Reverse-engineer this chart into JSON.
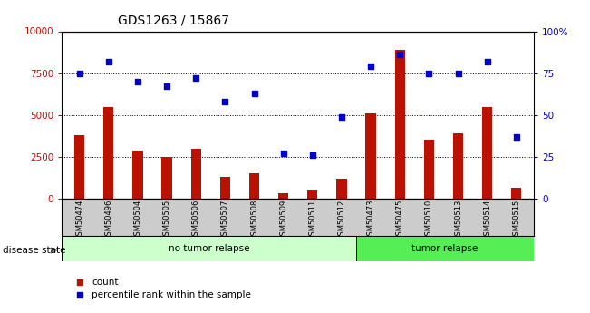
{
  "title": "GDS1263 / 15867",
  "samples": [
    "GSM50474",
    "GSM50496",
    "GSM50504",
    "GSM50505",
    "GSM50506",
    "GSM50507",
    "GSM50508",
    "GSM50509",
    "GSM50511",
    "GSM50512",
    "GSM50473",
    "GSM50475",
    "GSM50510",
    "GSM50513",
    "GSM50514",
    "GSM50515"
  ],
  "counts": [
    3800,
    5500,
    2900,
    2500,
    3000,
    1300,
    1500,
    350,
    550,
    1200,
    5100,
    8900,
    3500,
    3900,
    5500,
    650
  ],
  "percentiles": [
    75,
    82,
    70,
    67,
    72,
    58,
    63,
    27,
    26,
    49,
    79,
    86,
    75,
    75,
    82,
    37
  ],
  "no_tumor_count": 10,
  "tumor_count": 6,
  "left_label": "no tumor relapse",
  "right_label": "tumor relapse",
  "disease_state_label": "disease state",
  "bar_color": "#bb1100",
  "dot_color": "#0000cc",
  "ylim_left": [
    0,
    10000
  ],
  "ylim_right": [
    0,
    100
  ],
  "yticks_left": [
    0,
    2500,
    5000,
    7500,
    10000
  ],
  "yticks_right": [
    0,
    25,
    50,
    75,
    100
  ],
  "ytick_labels_left": [
    "0",
    "2500",
    "5000",
    "7500",
    "10000"
  ],
  "ytick_labels_right": [
    "0",
    "25",
    "50",
    "75",
    "100%"
  ],
  "legend_count_label": "count",
  "legend_pct_label": "percentile rank within the sample",
  "bg_plot": "#ffffff",
  "bg_no_tumor": "#ccffcc",
  "bg_tumor": "#55ee55",
  "tick_bg": "#cccccc",
  "grid_lines": [
    2500,
    5000,
    7500
  ]
}
